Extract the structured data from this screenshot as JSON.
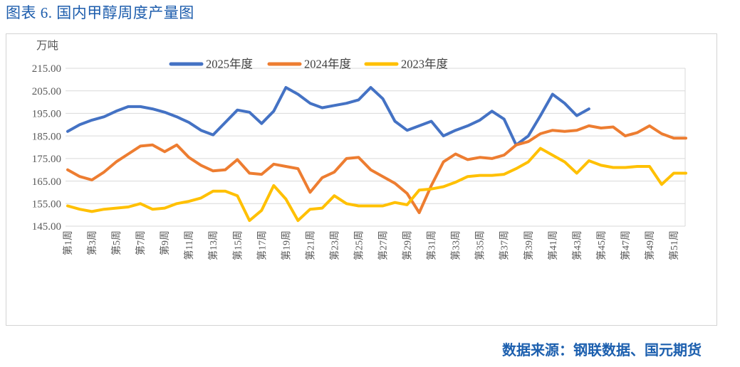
{
  "page": {
    "source_note": "数据来源：钢联数据、国元期货"
  },
  "chart_data": {
    "type": "line",
    "title": "图表 6.  国内甲醇周度产量图",
    "unit_label": "万吨",
    "ylabel": "万吨",
    "xlabel": "",
    "ylim": [
      145,
      215
    ],
    "y_tick_step": 10,
    "y_tick_labels": [
      "215.00",
      "205.00",
      "195.00",
      "185.00",
      "175.00",
      "165.00",
      "155.00",
      "145.00"
    ],
    "grid": true,
    "legend_position": "top",
    "x_weeks_total": 52,
    "x_tick_labels": [
      "第1周",
      "第3周",
      "第5周",
      "第7周",
      "第9周",
      "第11周",
      "第13周",
      "第15周",
      "第17周",
      "第19周",
      "第21周",
      "第23周",
      "第25周",
      "第27周",
      "第29周",
      "第31周",
      "第33周",
      "第35周",
      "第37周",
      "第39周",
      "第41周",
      "第43周",
      "第45周",
      "第47周",
      "第49周",
      "第51周"
    ],
    "colors": {
      "grid": "#d9d9d9",
      "tick_text": "#595959",
      "legend_text": "#404040",
      "title_text": "#1c5cac"
    },
    "series": [
      {
        "name": "2025年度",
        "color": "#4472C4",
        "start_week": 1,
        "values": [
          187,
          190,
          192,
          193.5,
          196,
          198,
          198,
          197,
          195.5,
          193.5,
          191,
          187.5,
          185.5,
          191,
          196.5,
          195.5,
          190.5,
          196,
          206.5,
          203.5,
          199.5,
          197.5,
          198.5,
          199.5,
          201,
          206.5,
          201.5,
          191.5,
          187.5,
          189.5,
          191.5,
          185,
          187.5,
          189.5,
          192,
          196,
          192.5,
          181,
          185,
          194,
          203.5,
          199.5,
          194,
          197
        ]
      },
      {
        "name": "2024年度",
        "color": "#ED7D31",
        "start_week": 1,
        "values": [
          170,
          167,
          165.5,
          169,
          173.5,
          177,
          180.5,
          181,
          178,
          181,
          175.5,
          172,
          169.5,
          170,
          174.5,
          168.5,
          168,
          172.5,
          171.5,
          170.5,
          160,
          166.5,
          169,
          175,
          175.5,
          170,
          167,
          164,
          159.5,
          151,
          163,
          173.5,
          177,
          174.5,
          175.5,
          175,
          176.5,
          181,
          182.5,
          186,
          187.5,
          187,
          187.5,
          189.5,
          188.5,
          189,
          185,
          186.5,
          189.5,
          186,
          184,
          184
        ]
      },
      {
        "name": "2023年度",
        "color": "#FFC000",
        "start_week": 1,
        "values": [
          154,
          152.5,
          151.5,
          152.5,
          153,
          153.5,
          155,
          152.5,
          153,
          155,
          156,
          157.5,
          160.5,
          160.5,
          158.5,
          147.5,
          152,
          163,
          157,
          147.5,
          152.5,
          153,
          158.5,
          155,
          154,
          154,
          154,
          155.5,
          154.5,
          161,
          161.5,
          162.5,
          164.5,
          167,
          167.5,
          167.5,
          168,
          170.5,
          173.5,
          179.5,
          176.5,
          173.5,
          168.5,
          174,
          172,
          171,
          171,
          171.5,
          171.5,
          163.5,
          168.5,
          168.5
        ]
      }
    ]
  }
}
